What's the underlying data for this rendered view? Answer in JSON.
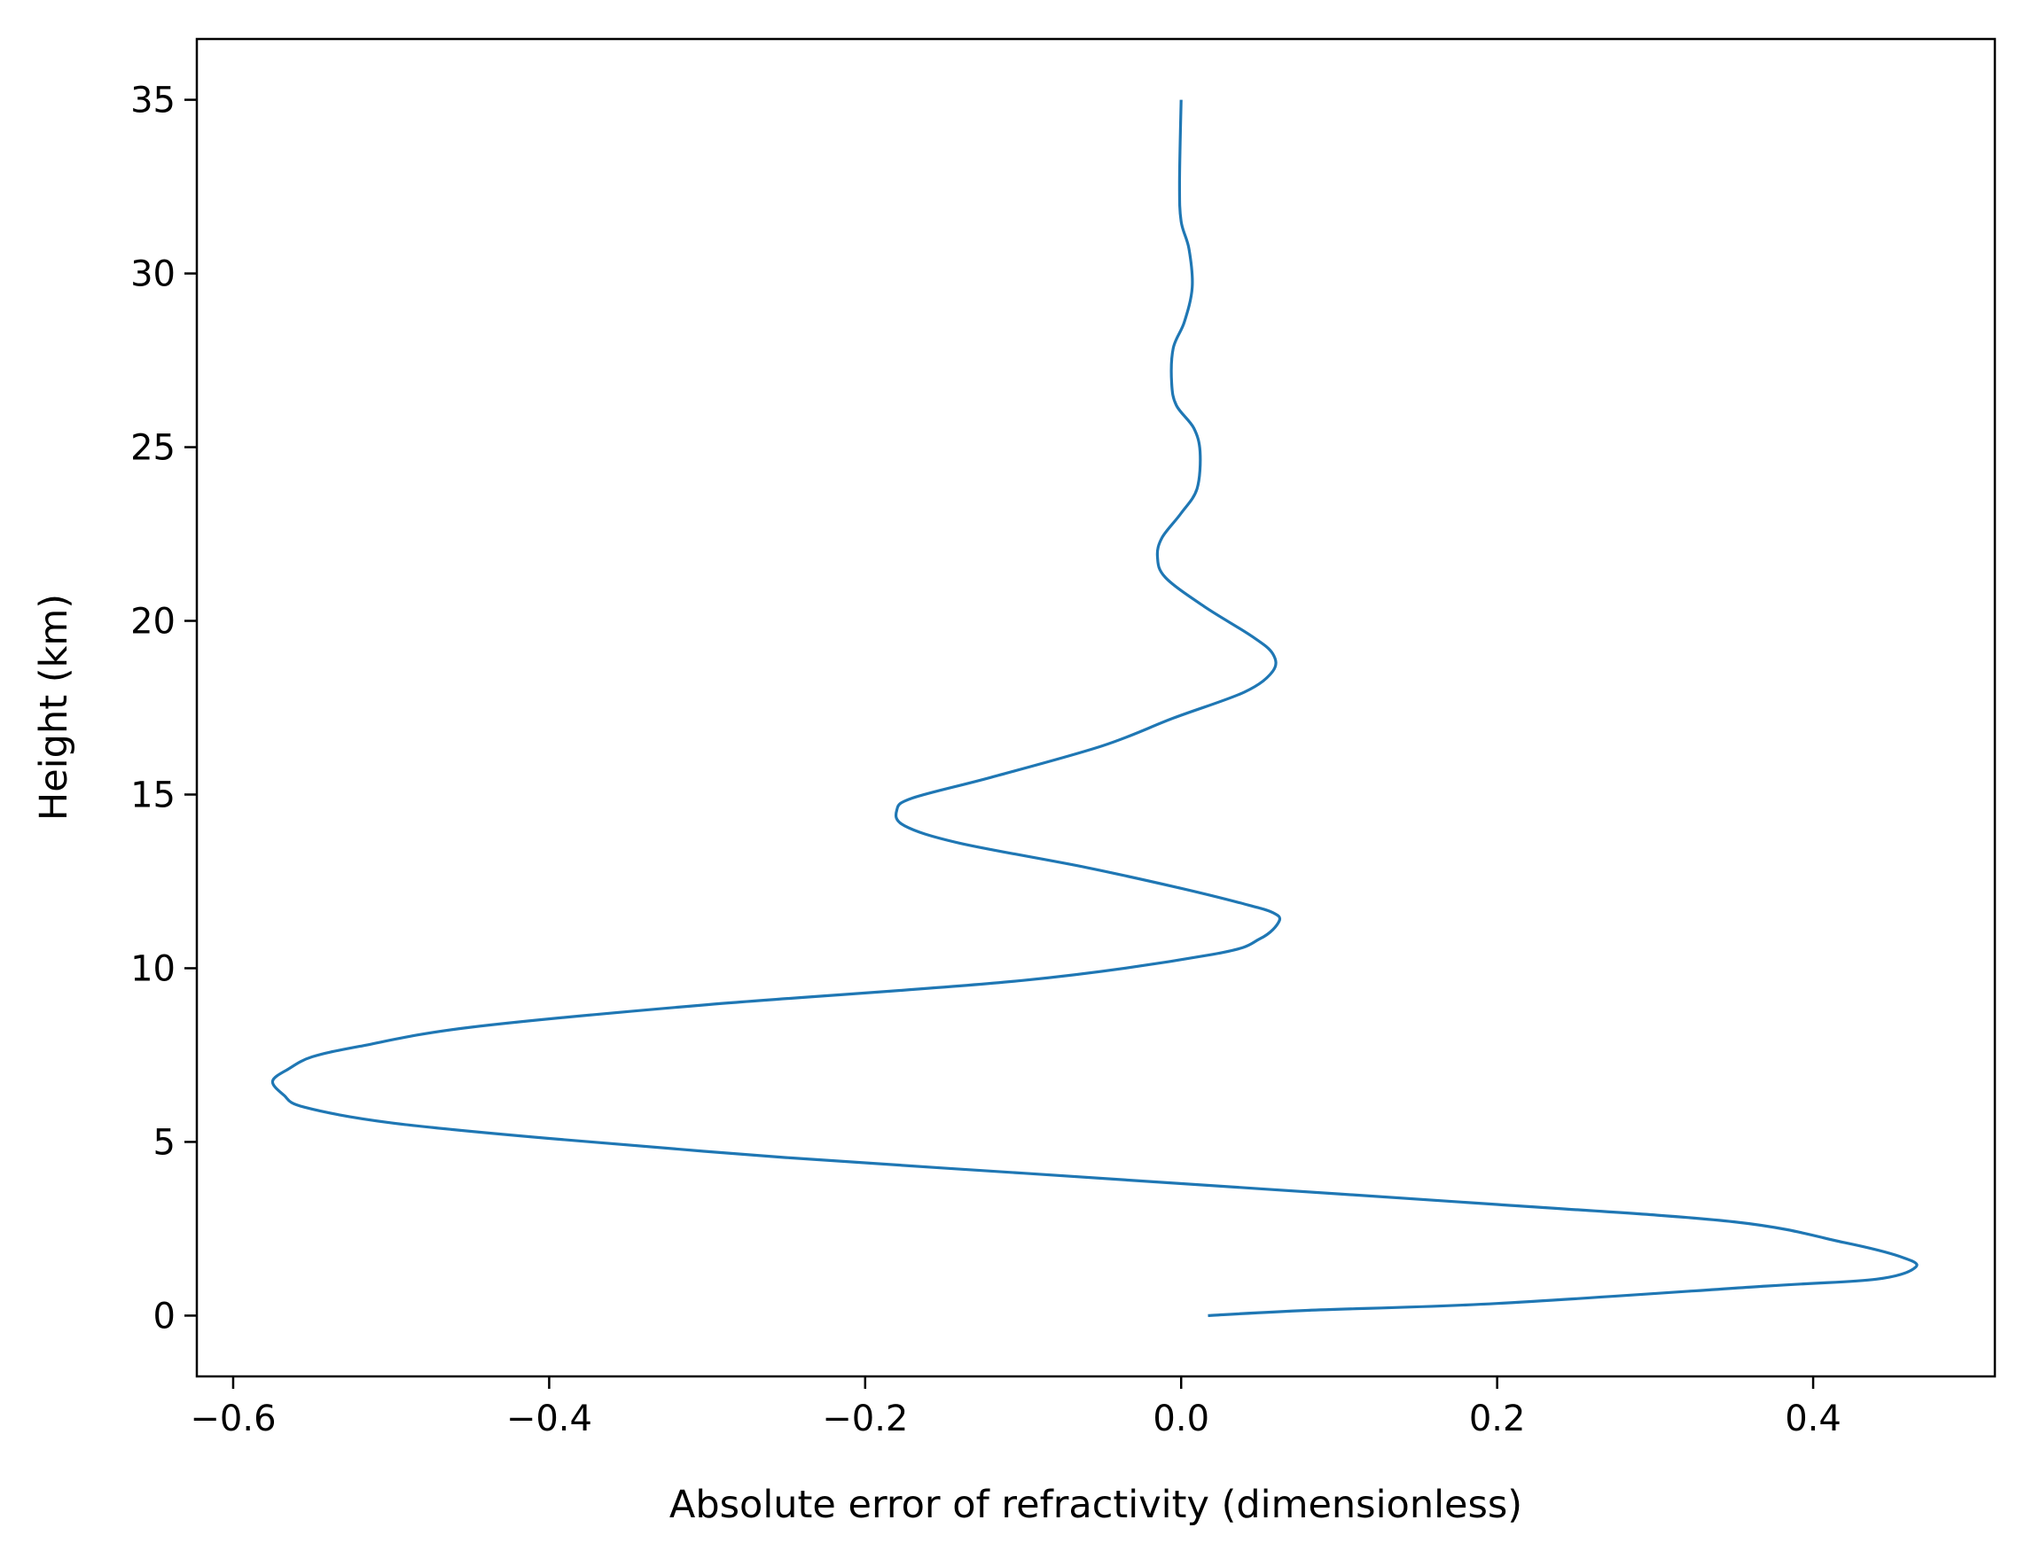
{
  "chart_data": {
    "type": "line",
    "title": "",
    "xlabel": "Absolute error of refractivity (dimensionless)",
    "ylabel": "Height (km)",
    "xlim": [
      -0.623,
      0.515
    ],
    "ylim": [
      -1.75,
      36.75
    ],
    "xticks": [
      -0.6,
      -0.4,
      -0.2,
      0.0,
      0.2,
      0.4
    ],
    "xtick_labels": [
      "−0.6",
      "−0.4",
      "−0.2",
      "0.0",
      "0.2",
      "0.4"
    ],
    "yticks": [
      0,
      5,
      10,
      15,
      20,
      25,
      30,
      35
    ],
    "ytick_labels": [
      "0",
      "5",
      "10",
      "15",
      "20",
      "25",
      "30",
      "35"
    ],
    "grid": false,
    "legend": "none",
    "series_color": "#1f77b4",
    "series": [
      {
        "x": [
          0.017,
          0.08,
          0.2,
          0.37,
          0.44,
          0.465,
          0.455,
          0.42,
          0.35,
          0.2,
          0.05,
          -0.1,
          -0.25,
          -0.4,
          -0.5,
          -0.555,
          -0.568,
          -0.575,
          -0.565,
          -0.55,
          -0.52,
          -0.45,
          -0.3,
          -0.1,
          0.02,
          0.05,
          0.062,
          0.058,
          0.04,
          0.0,
          -0.06,
          -0.14,
          -0.175,
          -0.18,
          -0.17,
          -0.12,
          -0.05,
          -0.005,
          0.04,
          0.058,
          0.058,
          0.045,
          0.015,
          -0.01,
          -0.015,
          -0.012,
          0.0,
          0.01,
          0.012,
          0.008,
          -0.003,
          -0.006,
          -0.005,
          0.002,
          0.007,
          0.005,
          0.0,
          -0.001,
          0.0
        ],
        "y": [
          0,
          0.15,
          0.35,
          0.85,
          1.05,
          1.4,
          1.7,
          2.1,
          2.7,
          3.2,
          3.65,
          4.1,
          4.55,
          5.1,
          5.55,
          6.0,
          6.35,
          6.75,
          7.1,
          7.45,
          7.75,
          8.3,
          8.95,
          9.65,
          10.4,
          10.85,
          11.35,
          11.6,
          11.85,
          12.3,
          12.9,
          13.6,
          14.1,
          14.55,
          14.9,
          15.5,
          16.4,
          17.2,
          17.95,
          18.55,
          19.05,
          19.55,
          20.4,
          21.25,
          21.85,
          22.4,
          23.1,
          23.8,
          24.85,
          25.55,
          26.2,
          26.85,
          27.85,
          28.6,
          29.6,
          30.7,
          31.5,
          32.6,
          35.0
        ]
      }
    ]
  }
}
